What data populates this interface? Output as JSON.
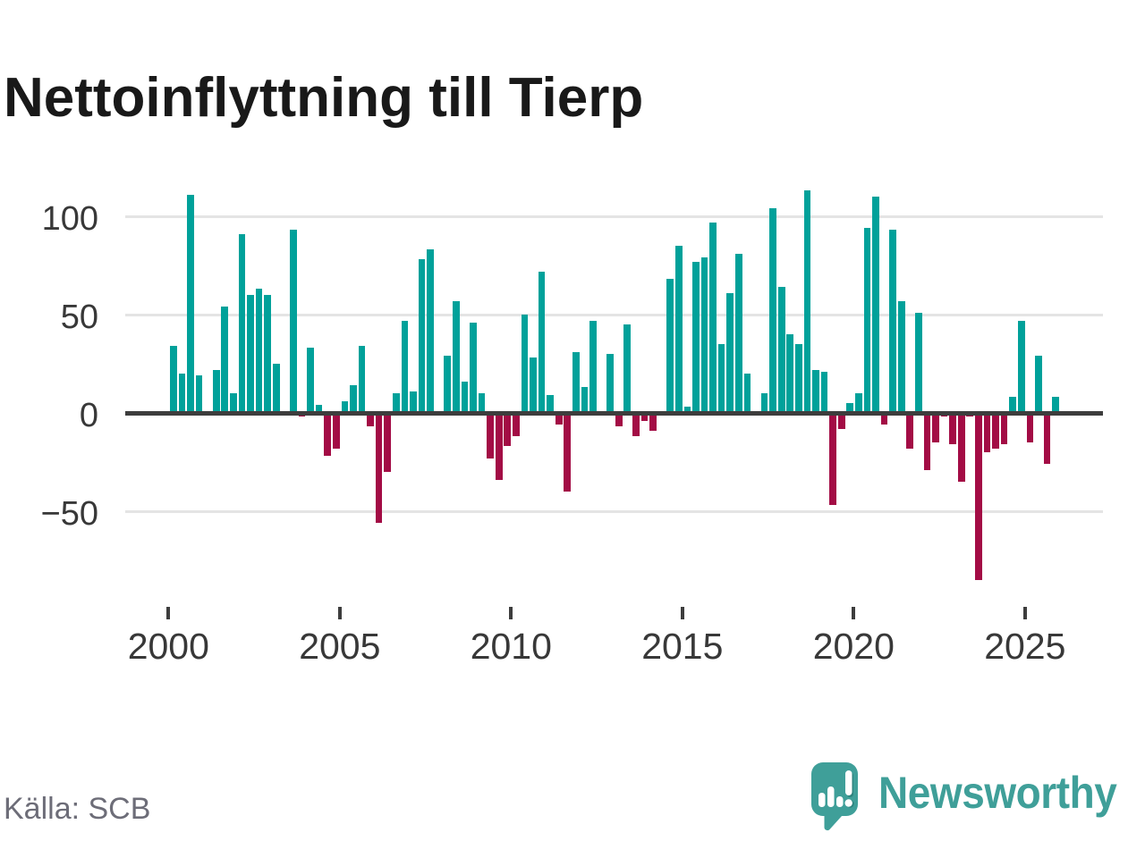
{
  "title": "Nettoinflyttning till Tierp",
  "chart_data": {
    "type": "bar",
    "title": "Nettoinflyttning till Tierp",
    "xlabel": "",
    "ylabel": "",
    "frequency": "quarterly",
    "start_period": "2000-Q1",
    "end_period": "2025-Q4",
    "values": [
      34,
      20,
      111,
      19,
      0,
      22,
      54,
      10,
      91,
      60,
      63,
      60,
      25,
      0,
      93,
      -2,
      33,
      4,
      -22,
      -18,
      6,
      14,
      34,
      -7,
      -56,
      -30,
      10,
      47,
      11,
      78,
      83,
      0,
      29,
      57,
      16,
      46,
      10,
      -23,
      -34,
      -17,
      -12,
      50,
      28,
      72,
      9,
      -6,
      -40,
      31,
      13,
      47,
      0,
      30,
      -7,
      45,
      -12,
      -4,
      -9,
      0,
      68,
      85,
      3,
      77,
      79,
      97,
      35,
      61,
      81,
      20,
      0,
      10,
      104,
      64,
      40,
      35,
      113,
      22,
      21,
      -47,
      -8,
      5,
      10,
      94,
      110,
      -6,
      93,
      57,
      -18,
      51,
      -29,
      -15,
      -2,
      -16,
      -35,
      -2,
      -85,
      -20,
      -18,
      -16,
      8,
      47,
      -15,
      29,
      -26,
      8
    ],
    "y_ticks": [
      {
        "value": 100,
        "label": "100"
      },
      {
        "value": 50,
        "label": "50"
      },
      {
        "value": 0,
        "label": "0"
      },
      {
        "value": -50,
        "label": "−50"
      }
    ],
    "x_ticks": [
      {
        "year": 2000,
        "label": "2000"
      },
      {
        "year": 2005,
        "label": "2005"
      },
      {
        "year": 2010,
        "label": "2010"
      },
      {
        "year": 2015,
        "label": "2015"
      },
      {
        "year": 2020,
        "label": "2020"
      },
      {
        "year": 2025,
        "label": "2025"
      }
    ],
    "ylim": [
      -90,
      120
    ],
    "grid": true,
    "legend_position": "none",
    "positive_color": "#00a19a",
    "negative_color": "#a30c45"
  },
  "footer": {
    "source": "Källa: SCB",
    "brand": "Newsworthy"
  }
}
